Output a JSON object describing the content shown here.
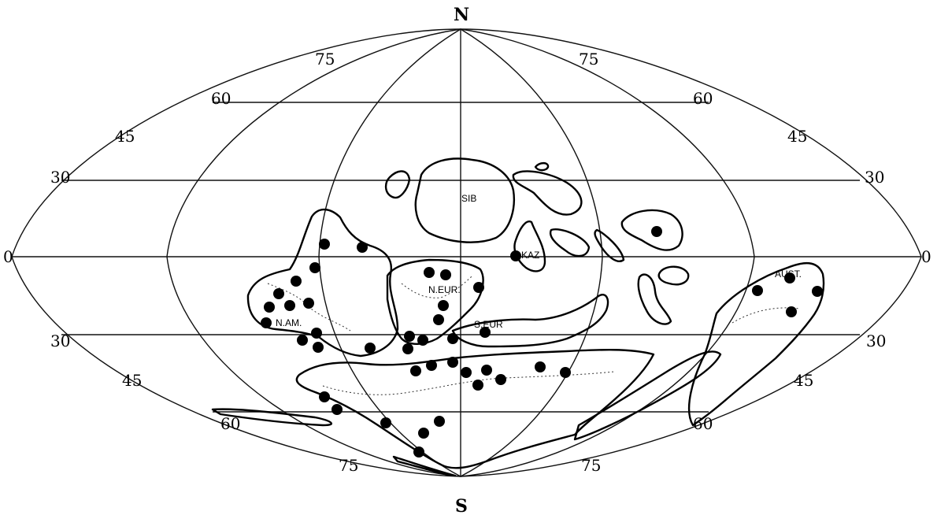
{
  "poles": {
    "north": "N",
    "south": "S"
  },
  "latitude_labels": {
    "left": [
      "75",
      "60",
      "45",
      "30",
      "0",
      "30",
      "45",
      "60",
      "75"
    ],
    "right": [
      "75",
      "60",
      "45",
      "30",
      "0",
      "30",
      "45",
      "60",
      "75"
    ]
  },
  "regions": {
    "siberia": "SIB",
    "kazakhstan": "KAZ",
    "north_europe": "N.EUR.",
    "south_europe": "S.EUR",
    "north_america": "N.AM.",
    "australia": "AUST."
  },
  "colors": {
    "ink": "#000000",
    "paper": "#ffffff"
  },
  "marker_icon": "filled-circle",
  "site_count": 48
}
